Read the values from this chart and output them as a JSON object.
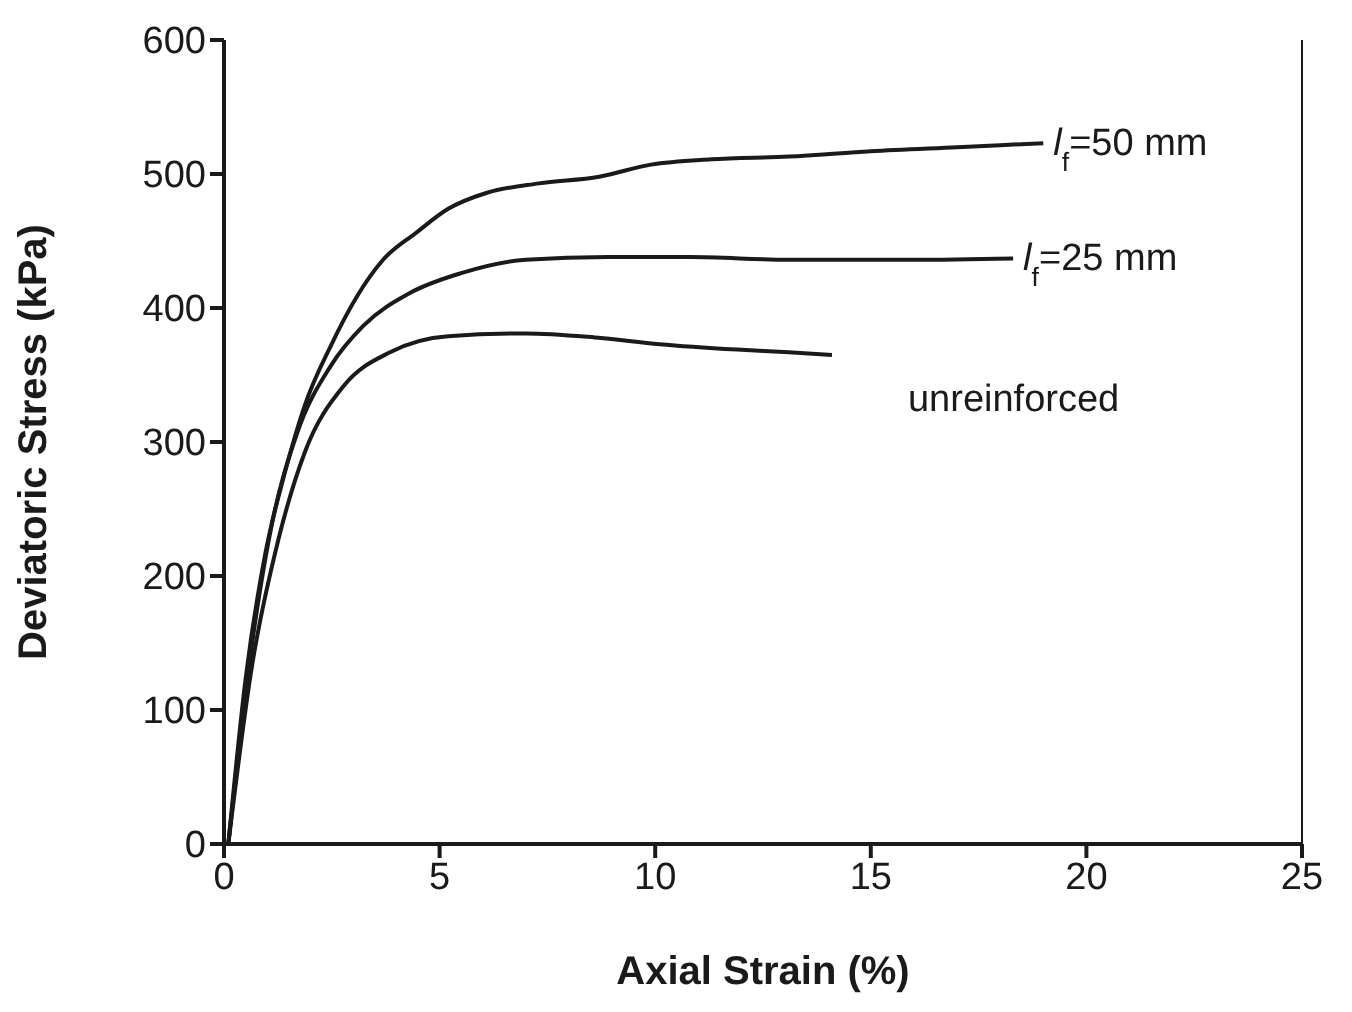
{
  "chart_data": {
    "type": "line",
    "xlabel": "Axial Strain (%)",
    "ylabel": "Deviatoric Stress (kPa)",
    "xlim": [
      0,
      25
    ],
    "xticks": [
      0,
      5,
      10,
      15,
      20,
      25
    ],
    "ylim": [
      0,
      600
    ],
    "yticks": [
      0,
      100,
      200,
      300,
      400,
      500,
      600
    ],
    "grid": false,
    "marker": "none",
    "line_style": "solid",
    "series": [
      {
        "name": "l$_{f}$=50 mm",
        "color": "#1a1a1a",
        "x": [
          0.1,
          0.5,
          0.96,
          1.41,
          1.87,
          2.48,
          3.09,
          3.69,
          4.45,
          5.2,
          6.1,
          7.3,
          8.7,
          9.9,
          11.3,
          13.1,
          15,
          17,
          19
        ],
        "values": [
          0,
          123,
          217,
          277,
          327,
          372,
          409,
          436,
          456,
          474,
          486,
          493,
          498,
          507,
          511,
          513,
          517,
          520,
          523
        ]
      },
      {
        "name": "l$_{f}$=25 mm",
        "color": "#1a1a1a",
        "x": [
          0.1,
          0.58,
          1.1,
          1.7,
          2.48,
          3.24,
          4.3,
          5.5,
          7,
          8.9,
          10.8,
          13.1,
          16,
          18.3
        ],
        "values": [
          0,
          133,
          237,
          307,
          357,
          387,
          411,
          426,
          436,
          438,
          438,
          436,
          436,
          437
        ]
      },
      {
        "name": "unreinforced",
        "color": "#1a1a1a",
        "x": [
          0.1,
          0.65,
          1.26,
          1.87,
          2.78,
          3.85,
          5.2,
          7,
          8.6,
          10.1,
          11.9,
          13.1,
          14.1
        ],
        "values": [
          0,
          133,
          227,
          292,
          342,
          367,
          379,
          381,
          378,
          373,
          369,
          367,
          365
        ]
      }
    ]
  }
}
